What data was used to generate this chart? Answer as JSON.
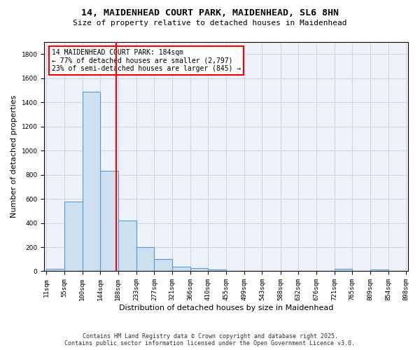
{
  "title": "14, MAIDENHEAD COURT PARK, MAIDENHEAD, SL6 8HN",
  "subtitle": "Size of property relative to detached houses in Maidenhead",
  "xlabel": "Distribution of detached houses by size in Maidenhead",
  "ylabel": "Number of detached properties",
  "bar_color": "#cce0f0",
  "bar_edge_color": "#5b9bd5",
  "grid_color": "#d0d8e8",
  "background_color": "#eef2fa",
  "bin_edges": [
    11,
    55,
    100,
    144,
    188,
    233,
    277,
    321,
    366,
    410,
    455,
    499,
    543,
    588,
    632,
    676,
    721,
    765,
    809,
    854,
    898
  ],
  "bin_counts": [
    20,
    580,
    1490,
    830,
    420,
    200,
    100,
    35,
    25,
    15,
    0,
    0,
    0,
    0,
    0,
    0,
    20,
    0,
    15,
    0
  ],
  "tick_labels": [
    "11sqm",
    "55sqm",
    "100sqm",
    "144sqm",
    "188sqm",
    "233sqm",
    "277sqm",
    "321sqm",
    "366sqm",
    "410sqm",
    "455sqm",
    "499sqm",
    "543sqm",
    "588sqm",
    "632sqm",
    "676sqm",
    "721sqm",
    "765sqm",
    "809sqm",
    "854sqm",
    "898sqm"
  ],
  "red_line_x": 184,
  "annotation_title": "14 MAIDENHEAD COURT PARK: 184sqm",
  "annotation_line1": "← 77% of detached houses are smaller (2,797)",
  "annotation_line2": "23% of semi-detached houses are larger (845) →",
  "footer1": "Contains HM Land Registry data © Crown copyright and database right 2025.",
  "footer2": "Contains public sector information licensed under the Open Government Licence v3.0.",
  "yticks": [
    0,
    200,
    400,
    600,
    800,
    1000,
    1200,
    1400,
    1600,
    1800
  ],
  "ylim": [
    0,
    1900
  ],
  "title_fontsize": 9.5,
  "subtitle_fontsize": 8,
  "ylabel_fontsize": 8,
  "xlabel_fontsize": 8,
  "tick_fontsize": 6.5,
  "annot_fontsize": 7,
  "footer_fontsize": 6
}
